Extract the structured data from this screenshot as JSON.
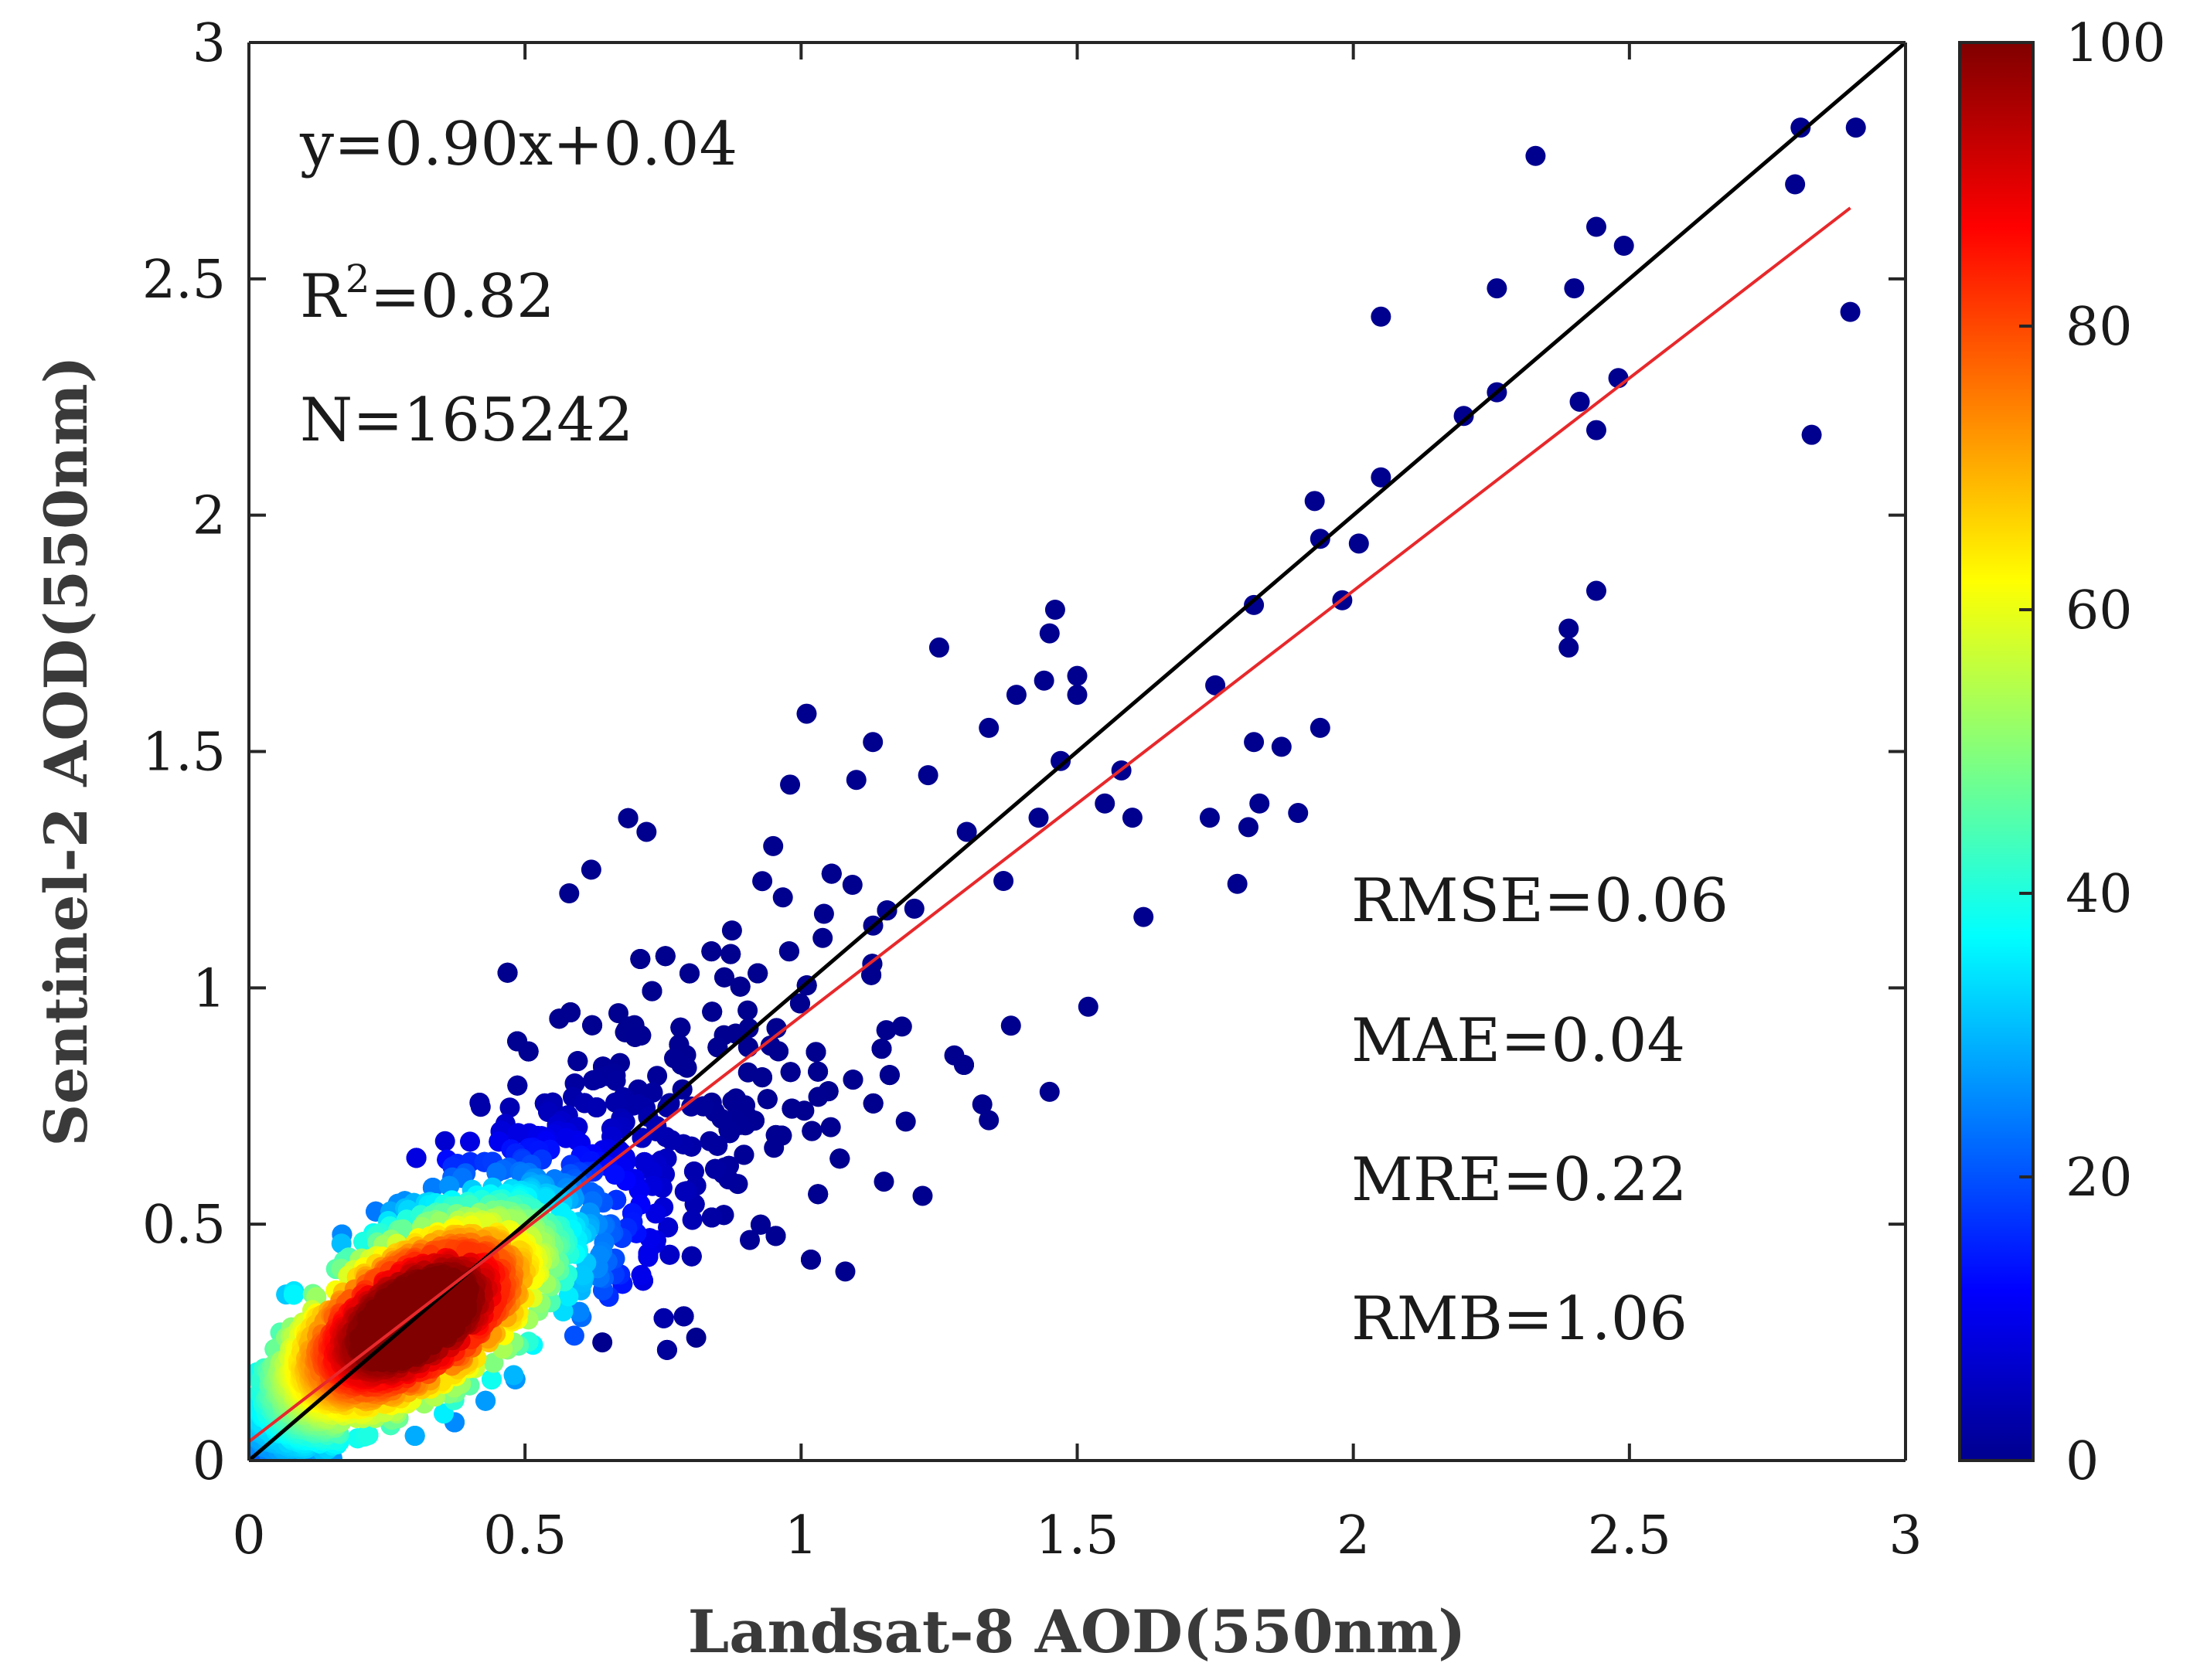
{
  "chart_data": {
    "type": "scatter",
    "subtype": "density-scatter",
    "xlabel": "Landsat-8 AOD(550nm)",
    "ylabel": "Sentinel-2 AOD(550nm)",
    "xlim": [
      0,
      3
    ],
    "ylim": [
      0,
      3
    ],
    "xticks": [
      0,
      0.5,
      1,
      1.5,
      2,
      2.5,
      3
    ],
    "xtick_labels": [
      "0",
      "0.5",
      "1",
      "1.5",
      "2",
      "2.5",
      "3"
    ],
    "yticks": [
      0,
      0.5,
      1,
      1.5,
      2,
      2.5,
      3
    ],
    "ytick_labels": [
      "0",
      "0.5",
      "1",
      "1.5",
      "2",
      "2.5",
      "3"
    ],
    "grid": false,
    "colorbar": {
      "colormap": "jet",
      "range": [
        0,
        100
      ],
      "ticks": [
        0,
        20,
        40,
        60,
        80,
        100
      ],
      "tick_labels": [
        "0",
        "20",
        "40",
        "60",
        "80",
        "100"
      ],
      "colors": [
        "#00008f",
        "#0000ff",
        "#00ffff",
        "#ffff00",
        "#ff0000",
        "#800000"
      ]
    },
    "annotations": {
      "equation": "y=0.90x+0.04",
      "r2_prefix": "R",
      "r2_sup": "2",
      "r2_value": "=0.82",
      "n": "N=165242",
      "rmse": "RMSE=0.06",
      "mae": "MAE=0.04",
      "mre": "MRE=0.22",
      "rmb": "RMB=1.06"
    },
    "lines": [
      {
        "name": "1:1 line",
        "color": "#000000",
        "x": [
          0,
          3
        ],
        "y": [
          0,
          3
        ]
      },
      {
        "name": "fit line",
        "color": "#e8282b",
        "slope": 0.9,
        "intercept": 0.04,
        "x": [
          0.0,
          2.9
        ],
        "y": [
          0.04,
          2.65
        ]
      }
    ],
    "sample_count": 165242,
    "outlier_points": [
      [
        2.81,
        2.82
      ],
      [
        2.91,
        2.82
      ],
      [
        2.33,
        2.76
      ],
      [
        2.8,
        2.7
      ],
      [
        2.44,
        2.61
      ],
      [
        2.49,
        2.57
      ],
      [
        2.26,
        2.48
      ],
      [
        2.4,
        2.48
      ],
      [
        2.9,
        2.43
      ],
      [
        2.05,
        2.42
      ],
      [
        2.48,
        2.29
      ],
      [
        2.26,
        2.26
      ],
      [
        2.41,
        2.24
      ],
      [
        2.2,
        2.21
      ],
      [
        2.44,
        2.18
      ],
      [
        2.83,
        2.17
      ],
      [
        2.05,
        2.08
      ],
      [
        1.93,
        2.03
      ],
      [
        1.94,
        1.95
      ],
      [
        2.01,
        1.94
      ],
      [
        1.98,
        1.82
      ],
      [
        2.44,
        1.84
      ],
      [
        1.82,
        1.81
      ],
      [
        1.46,
        1.8
      ],
      [
        2.39,
        1.76
      ],
      [
        1.45,
        1.75
      ],
      [
        2.39,
        1.72
      ],
      [
        1.25,
        1.72
      ],
      [
        1.5,
        1.66
      ],
      [
        1.44,
        1.65
      ],
      [
        1.75,
        1.64
      ],
      [
        1.5,
        1.62
      ],
      [
        1.39,
        1.62
      ],
      [
        1.01,
        1.58
      ],
      [
        1.34,
        1.55
      ],
      [
        1.94,
        1.55
      ],
      [
        1.13,
        1.52
      ],
      [
        1.82,
        1.52
      ],
      [
        1.87,
        1.51
      ],
      [
        1.47,
        1.48
      ],
      [
        1.23,
        1.45
      ],
      [
        1.58,
        1.46
      ],
      [
        1.1,
        1.44
      ],
      [
        0.98,
        1.43
      ],
      [
        1.74,
        1.36
      ],
      [
        1.9,
        1.37
      ],
      [
        1.55,
        1.39
      ],
      [
        1.3,
        1.33
      ],
      [
        1.81,
        1.34
      ],
      [
        1.83,
        1.39
      ],
      [
        1.62,
        1.15
      ],
      [
        1.79,
        1.22
      ],
      [
        1.43,
        1.36
      ],
      [
        1.6,
        1.36
      ],
      [
        1.52,
        0.96
      ],
      [
        1.45,
        0.78
      ],
      [
        1.34,
        0.72
      ],
      [
        1.38,
        0.92
      ],
      [
        1.08,
        0.4
      ],
      [
        0.81,
        0.26
      ],
      [
        0.72,
        1.33
      ],
      [
        0.62,
        1.25
      ],
      [
        0.58,
        1.2
      ],
      [
        1.15,
        0.59
      ],
      [
        1.22,
        0.56
      ],
      [
        0.64,
        0.25
      ]
    ]
  }
}
